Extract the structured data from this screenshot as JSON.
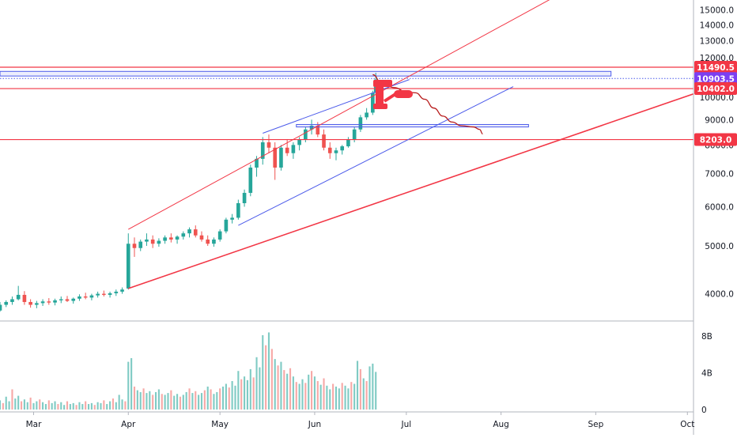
{
  "chart_data": {
    "type": "candlestick",
    "title": "",
    "xlabel": "",
    "ylabel": "",
    "price_axis": {
      "ylim": [
        3550,
        15600
      ],
      "scale": "log",
      "ticks": [
        "15000.0",
        "14000.0",
        "13000.0",
        "12000.0",
        "11000.0",
        "10000.0",
        "9000.0",
        "8000.0",
        "7000.0",
        "6000.0",
        "5000.0",
        "4000.0"
      ],
      "tick_values": [
        15000,
        14000,
        13000,
        12000,
        11000,
        10000,
        9000,
        8000,
        7000,
        6000,
        5000,
        4000
      ]
    },
    "volume_axis": {
      "ylim": [
        0,
        9.3
      ],
      "ticks": [
        "8B",
        "4B",
        "0"
      ],
      "tick_values": [
        8,
        4,
        0
      ]
    },
    "time_axis": {
      "labels": [
        "Mar",
        "Apr",
        "May",
        "Jun",
        "Jul",
        "Aug",
        "Sep",
        "Oct"
      ],
      "label_days": [
        29,
        60,
        90,
        121,
        151,
        182,
        213,
        243
      ],
      "xlim": [
        18,
        245
      ]
    },
    "grid": false,
    "price_labels": [
      {
        "text": "11490.5",
        "value": 11490.5,
        "color": "#f23645"
      },
      {
        "text": "10903.5",
        "value": 10903.5,
        "color": "#7b3ff2"
      },
      {
        "text": "10402.0",
        "value": 10402.0,
        "color": "#f23645"
      },
      {
        "text": "8203.0",
        "value": 8203.0,
        "color": "#f23645"
      }
    ],
    "colors": {
      "up": "#26a69a",
      "down": "#ef5350",
      "red_line": "#f23645",
      "blue_line": "#4c5bea",
      "path": "#b71c1c"
    },
    "drawings": [
      {
        "kind": "hline",
        "value": 11490.5,
        "color": "red"
      },
      {
        "kind": "hline",
        "value": 10402.0,
        "color": "red"
      },
      {
        "kind": "hline",
        "value": 8203.0,
        "color": "red"
      },
      {
        "kind": "hline_dotted",
        "value": 10903.5,
        "color": "blue"
      },
      {
        "kind": "rect",
        "from_day": 18,
        "to_day": 218,
        "low": 11030,
        "high": 11270,
        "color": "blue"
      },
      {
        "kind": "rect",
        "from_day": 115,
        "to_day": 191,
        "low": 8700,
        "high": 8800,
        "color": "blue"
      },
      {
        "kind": "trend",
        "points": [
          [
            60,
            4100
          ],
          [
            245,
            10150
          ]
        ],
        "color": "red",
        "width": 1.6
      },
      {
        "kind": "trend",
        "points": [
          [
            60,
            5400
          ],
          [
            200,
            16000
          ]
        ],
        "color": "red",
        "width": 1.0
      },
      {
        "kind": "trend",
        "points": [
          [
            96,
            5500
          ],
          [
            186,
            10500
          ]
        ],
        "color": "blue",
        "width": 1.0
      },
      {
        "kind": "trend",
        "points": [
          [
            104,
            8450
          ],
          [
            152,
            10850
          ]
        ],
        "color": "blue",
        "width": 1.0
      },
      {
        "kind": "path",
        "color": "dark-red",
        "points": [
          [
            140,
            11100
          ],
          [
            143,
            10650
          ],
          [
            147,
            10450
          ],
          [
            151,
            10250
          ],
          [
            154,
            10200
          ],
          [
            157,
            9900
          ],
          [
            160,
            9500
          ],
          [
            163,
            9150
          ],
          [
            166,
            8900
          ],
          [
            169,
            8750
          ],
          [
            173,
            8700
          ],
          [
            175,
            8600
          ],
          [
            176,
            8420
          ]
        ]
      }
    ],
    "candles": [
      [
        18,
        3700,
        3850,
        3680,
        3800
      ],
      [
        20,
        3800,
        3880,
        3760,
        3850
      ],
      [
        22,
        3850,
        3950,
        3800,
        3900
      ],
      [
        24,
        3900,
        4150,
        3880,
        3980
      ],
      [
        26,
        3980,
        4050,
        3800,
        3850
      ],
      [
        28,
        3850,
        3900,
        3750,
        3800
      ],
      [
        30,
        3800,
        3870,
        3740,
        3830
      ],
      [
        32,
        3830,
        3900,
        3780,
        3860
      ],
      [
        34,
        3860,
        3920,
        3800,
        3840
      ],
      [
        36,
        3840,
        3910,
        3790,
        3880
      ],
      [
        38,
        3880,
        3950,
        3830,
        3900
      ],
      [
        40,
        3900,
        3960,
        3850,
        3870
      ],
      [
        42,
        3870,
        3930,
        3820,
        3910
      ],
      [
        44,
        3910,
        3990,
        3870,
        3950
      ],
      [
        46,
        3950,
        4020,
        3900,
        3930
      ],
      [
        48,
        3930,
        4000,
        3880,
        3970
      ],
      [
        50,
        3970,
        4040,
        3930,
        4000
      ],
      [
        52,
        4000,
        4060,
        3950,
        3980
      ],
      [
        54,
        3980,
        4040,
        3930,
        4010
      ],
      [
        56,
        4010,
        4080,
        3960,
        4040
      ],
      [
        58,
        4040,
        4120,
        4000,
        4080
      ],
      [
        60,
        4100,
        5300,
        4080,
        5050
      ],
      [
        62,
        5050,
        5200,
        4750,
        4950
      ],
      [
        64,
        4950,
        5150,
        4880,
        5100
      ],
      [
        66,
        5100,
        5300,
        5000,
        5150
      ],
      [
        68,
        5150,
        5250,
        4950,
        5050
      ],
      [
        70,
        5050,
        5180,
        4980,
        5120
      ],
      [
        72,
        5120,
        5250,
        5050,
        5200
      ],
      [
        74,
        5200,
        5300,
        5080,
        5150
      ],
      [
        76,
        5150,
        5250,
        5050,
        5220
      ],
      [
        78,
        5220,
        5350,
        5150,
        5300
      ],
      [
        80,
        5300,
        5450,
        5200,
        5400
      ],
      [
        82,
        5400,
        5500,
        5200,
        5250
      ],
      [
        84,
        5250,
        5350,
        5100,
        5150
      ],
      [
        86,
        5150,
        5250,
        5000,
        5050
      ],
      [
        88,
        5050,
        5200,
        4980,
        5150
      ],
      [
        90,
        5150,
        5400,
        5100,
        5350
      ],
      [
        92,
        5350,
        5700,
        5300,
        5650
      ],
      [
        94,
        5650,
        5800,
        5550,
        5700
      ],
      [
        96,
        5700,
        6200,
        5650,
        6100
      ],
      [
        98,
        6100,
        6500,
        6000,
        6400
      ],
      [
        100,
        6400,
        7300,
        6300,
        7200
      ],
      [
        102,
        7200,
        7600,
        6900,
        7500
      ],
      [
        104,
        7500,
        8300,
        7300,
        8100
      ],
      [
        106,
        8100,
        8400,
        7700,
        7900
      ],
      [
        108,
        7900,
        8100,
        6800,
        7200
      ],
      [
        110,
        7200,
        8000,
        7100,
        7900
      ],
      [
        112,
        7900,
        8200,
        7600,
        7700
      ],
      [
        114,
        7700,
        8100,
        7500,
        8000
      ],
      [
        116,
        8000,
        8300,
        7800,
        8200
      ],
      [
        118,
        8200,
        8700,
        8100,
        8600
      ],
      [
        120,
        8600,
        9000,
        8400,
        8750
      ],
      [
        122,
        8750,
        8900,
        8300,
        8400
      ],
      [
        124,
        8400,
        8600,
        7800,
        7900
      ],
      [
        126,
        7900,
        8100,
        7500,
        7700
      ],
      [
        128,
        7700,
        7900,
        7450,
        7800
      ],
      [
        130,
        7800,
        8000,
        7650,
        7950
      ],
      [
        132,
        7950,
        8300,
        7900,
        8200
      ],
      [
        134,
        8200,
        8700,
        8100,
        8600
      ],
      [
        136,
        8600,
        9200,
        8500,
        9100
      ],
      [
        138,
        9100,
        9500,
        9000,
        9300
      ],
      [
        140,
        9300,
        10300,
        9200,
        10200
      ],
      [
        141,
        10200,
        11200,
        10100,
        10850
      ]
    ],
    "volume": [
      [
        18,
        1.0,
        "up"
      ],
      [
        19,
        0.7,
        "down"
      ],
      [
        20,
        1.4,
        "up"
      ],
      [
        21,
        0.9,
        "up"
      ],
      [
        22,
        2.2,
        "down"
      ],
      [
        23,
        1.2,
        "up"
      ],
      [
        24,
        1.5,
        "up"
      ],
      [
        25,
        0.9,
        "down"
      ],
      [
        26,
        1.1,
        "up"
      ],
      [
        27,
        0.8,
        "up"
      ],
      [
        28,
        1.3,
        "down"
      ],
      [
        29,
        0.7,
        "up"
      ],
      [
        30,
        0.9,
        "up"
      ],
      [
        31,
        1.1,
        "down"
      ],
      [
        32,
        0.8,
        "up"
      ],
      [
        33,
        0.6,
        "up"
      ],
      [
        34,
        1.0,
        "down"
      ],
      [
        35,
        0.7,
        "up"
      ],
      [
        36,
        0.9,
        "up"
      ],
      [
        37,
        0.6,
        "down"
      ],
      [
        38,
        0.8,
        "up"
      ],
      [
        39,
        0.5,
        "up"
      ],
      [
        40,
        0.9,
        "down"
      ],
      [
        41,
        0.6,
        "up"
      ],
      [
        42,
        0.7,
        "up"
      ],
      [
        43,
        0.5,
        "down"
      ],
      [
        44,
        0.8,
        "up"
      ],
      [
        45,
        0.6,
        "up"
      ],
      [
        46,
        0.9,
        "down"
      ],
      [
        47,
        0.6,
        "up"
      ],
      [
        48,
        0.7,
        "up"
      ],
      [
        49,
        0.5,
        "down"
      ],
      [
        50,
        0.8,
        "up"
      ],
      [
        51,
        0.7,
        "up"
      ],
      [
        52,
        1.0,
        "down"
      ],
      [
        53,
        0.6,
        "up"
      ],
      [
        54,
        0.9,
        "up"
      ],
      [
        55,
        1.2,
        "down"
      ],
      [
        56,
        0.8,
        "up"
      ],
      [
        57,
        1.6,
        "up"
      ],
      [
        58,
        1.1,
        "up"
      ],
      [
        59,
        0.9,
        "down"
      ],
      [
        60,
        5.2,
        "up"
      ],
      [
        61,
        5.6,
        "up"
      ],
      [
        62,
        2.5,
        "down"
      ],
      [
        63,
        2.1,
        "up"
      ],
      [
        64,
        1.9,
        "up"
      ],
      [
        65,
        2.3,
        "down"
      ],
      [
        66,
        1.8,
        "up"
      ],
      [
        67,
        2.0,
        "up"
      ],
      [
        68,
        1.6,
        "down"
      ],
      [
        69,
        1.9,
        "up"
      ],
      [
        70,
        2.2,
        "up"
      ],
      [
        71,
        1.7,
        "down"
      ],
      [
        72,
        1.6,
        "up"
      ],
      [
        73,
        1.8,
        "up"
      ],
      [
        74,
        2.1,
        "down"
      ],
      [
        75,
        1.5,
        "up"
      ],
      [
        76,
        1.7,
        "up"
      ],
      [
        77,
        1.4,
        "down"
      ],
      [
        78,
        1.6,
        "up"
      ],
      [
        79,
        1.9,
        "up"
      ],
      [
        80,
        2.3,
        "down"
      ],
      [
        81,
        1.8,
        "up"
      ],
      [
        82,
        2.0,
        "down"
      ],
      [
        83,
        1.6,
        "up"
      ],
      [
        84,
        1.8,
        "up"
      ],
      [
        85,
        2.1,
        "down"
      ],
      [
        86,
        2.5,
        "up"
      ],
      [
        87,
        2.2,
        "down"
      ],
      [
        88,
        1.7,
        "up"
      ],
      [
        89,
        1.9,
        "up"
      ],
      [
        90,
        2.3,
        "down"
      ],
      [
        91,
        2.5,
        "up"
      ],
      [
        92,
        2.8,
        "up"
      ],
      [
        93,
        2.4,
        "down"
      ],
      [
        94,
        3.1,
        "up"
      ],
      [
        95,
        2.6,
        "up"
      ],
      [
        96,
        4.2,
        "up"
      ],
      [
        97,
        3.3,
        "down"
      ],
      [
        98,
        3.6,
        "up"
      ],
      [
        99,
        3.2,
        "up"
      ],
      [
        100,
        4.4,
        "up"
      ],
      [
        101,
        3.5,
        "down"
      ],
      [
        102,
        5.7,
        "up"
      ],
      [
        103,
        4.6,
        "up"
      ],
      [
        104,
        8.1,
        "up"
      ],
      [
        105,
        7.0,
        "down"
      ],
      [
        106,
        8.4,
        "up"
      ],
      [
        107,
        6.6,
        "down"
      ],
      [
        108,
        5.5,
        "up"
      ],
      [
        109,
        4.8,
        "down"
      ],
      [
        110,
        5.2,
        "up"
      ],
      [
        111,
        4.3,
        "down"
      ],
      [
        112,
        3.9,
        "up"
      ],
      [
        113,
        4.5,
        "down"
      ],
      [
        114,
        3.6,
        "up"
      ],
      [
        115,
        3.0,
        "down"
      ],
      [
        116,
        2.8,
        "up"
      ],
      [
        117,
        3.3,
        "up"
      ],
      [
        118,
        2.9,
        "down"
      ],
      [
        119,
        3.8,
        "up"
      ],
      [
        120,
        4.2,
        "down"
      ],
      [
        121,
        3.6,
        "up"
      ],
      [
        122,
        3.1,
        "down"
      ],
      [
        123,
        2.7,
        "up"
      ],
      [
        124,
        3.4,
        "down"
      ],
      [
        125,
        2.6,
        "up"
      ],
      [
        126,
        2.2,
        "up"
      ],
      [
        127,
        2.8,
        "down"
      ],
      [
        128,
        2.5,
        "up"
      ],
      [
        129,
        2.3,
        "up"
      ],
      [
        130,
        2.9,
        "down"
      ],
      [
        131,
        2.6,
        "up"
      ],
      [
        132,
        2.3,
        "up"
      ],
      [
        133,
        3.0,
        "down"
      ],
      [
        134,
        2.8,
        "up"
      ],
      [
        135,
        5.3,
        "up"
      ],
      [
        136,
        4.4,
        "down"
      ],
      [
        137,
        3.4,
        "up"
      ],
      [
        138,
        3.1,
        "down"
      ],
      [
        139,
        4.7,
        "up"
      ],
      [
        140,
        5.0,
        "up"
      ],
      [
        141,
        4.1,
        "up"
      ]
    ]
  }
}
